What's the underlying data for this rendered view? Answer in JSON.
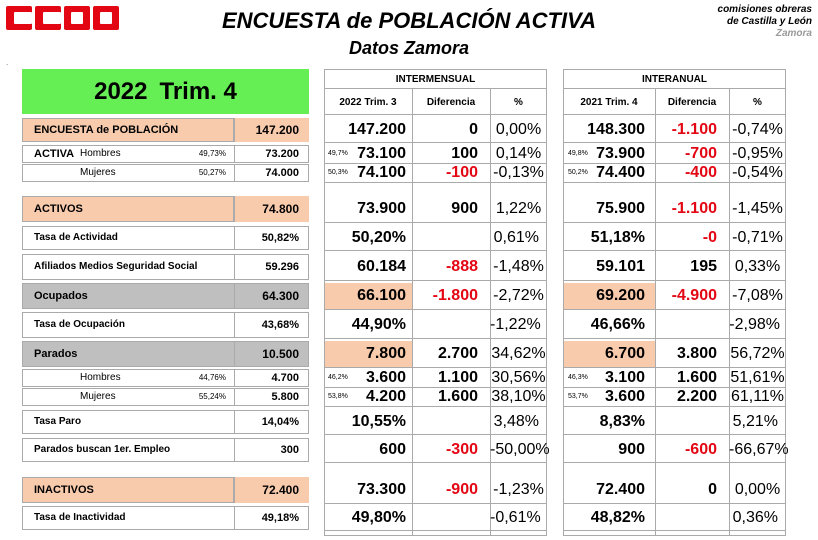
{
  "header": {
    "title": "ENCUESTA de POBLACIÓN ACTIVA",
    "subtitle": "Datos Zamora",
    "org_line1": "comisiones obreras",
    "org_line2": "de Castilla y León",
    "org_line3": "Zamora",
    "logo_text": "CCOO",
    "dot": "."
  },
  "period": {
    "year": "2022",
    "quarter": "Trim. 4"
  },
  "intermensual": {
    "title": "INTERMENSUAL",
    "col1": "2022 Trim. 3",
    "col2": "Diferencia",
    "col3": "%"
  },
  "interanual": {
    "title": "INTERANUAL",
    "col1": "2021 Trim. 4",
    "col2": "Diferencia",
    "col3": "%"
  },
  "rows": [
    {
      "label": "ENCUESTA de POBLACIÓN ACTIVA",
      "pct": "",
      "value": "147.200",
      "im_pct": "",
      "im_val": "147.200",
      "im_diff": "0",
      "im_perc": "0,00%",
      "ia_pct": "",
      "ia_val": "148.300",
      "ia_diff": "-1.100",
      "ia_perc": "-0,74%"
    },
    {
      "label": "Hombres",
      "pct": "49,73%",
      "value": "73.200",
      "im_pct": "49,7%",
      "im_val": "73.100",
      "im_diff": "100",
      "im_perc": "0,14%",
      "ia_pct": "49,8%",
      "ia_val": "73.900",
      "ia_diff": "-700",
      "ia_perc": "-0,95%"
    },
    {
      "label": "Mujeres",
      "pct": "50,27%",
      "value": "74.000",
      "im_pct": "50,3%",
      "im_val": "74.100",
      "im_diff": "-100",
      "im_perc": "-0,13%",
      "ia_pct": "50,2%",
      "ia_val": "74.400",
      "ia_diff": "-400",
      "ia_perc": "-0,54%"
    },
    {
      "label": "ACTIVOS",
      "pct": "",
      "value": "74.800",
      "im_pct": "",
      "im_val": "73.900",
      "im_diff": "900",
      "im_perc": "1,22%",
      "ia_pct": "",
      "ia_val": "75.900",
      "ia_diff": "-1.100",
      "ia_perc": "-1,45%"
    },
    {
      "label": "Tasa de Actividad",
      "pct": "",
      "value": "50,82%",
      "im_pct": "",
      "im_val": "50,20%",
      "im_diff": "",
      "im_perc": "0,61%",
      "ia_pct": "",
      "ia_val": "51,18%",
      "ia_diff": "-0",
      "ia_perc": "-0,71%"
    },
    {
      "label": "Afiliados Medios Seguridad Social",
      "pct": "",
      "value": "59.296",
      "im_pct": "",
      "im_val": "60.184",
      "im_diff": "-888",
      "im_perc": "-1,48%",
      "ia_pct": "",
      "ia_val": "59.101",
      "ia_diff": "195",
      "ia_perc": "0,33%"
    },
    {
      "label": "Ocupados",
      "pct": "",
      "value": "64.300",
      "im_pct": "",
      "im_val": "66.100",
      "im_diff": "-1.800",
      "im_perc": "-2,72%",
      "ia_pct": "",
      "ia_val": "69.200",
      "ia_diff": "-4.900",
      "ia_perc": "-7,08%"
    },
    {
      "label": "Tasa de Ocupación",
      "pct": "",
      "value": "43,68%",
      "im_pct": "",
      "im_val": "44,90%",
      "im_diff": "",
      "im_perc": "-1,22%",
      "ia_pct": "",
      "ia_val": "46,66%",
      "ia_diff": "",
      "ia_perc": "-2,98%"
    },
    {
      "label": "Parados",
      "pct": "",
      "value": "10.500",
      "im_pct": "",
      "im_val": "7.800",
      "im_diff": "2.700",
      "im_perc": "34,62%",
      "ia_pct": "",
      "ia_val": "6.700",
      "ia_diff": "3.800",
      "ia_perc": "56,72%"
    },
    {
      "label": "Hombres",
      "pct": "44,76%",
      "value": "4.700",
      "im_pct": "46,2%",
      "im_val": "3.600",
      "im_diff": "1.100",
      "im_perc": "30,56%",
      "ia_pct": "46,3%",
      "ia_val": "3.100",
      "ia_diff": "1.600",
      "ia_perc": "51,61%"
    },
    {
      "label": "Mujeres",
      "pct": "55,24%",
      "value": "5.800",
      "im_pct": "53,8%",
      "im_val": "4.200",
      "im_diff": "1.600",
      "im_perc": "38,10%",
      "ia_pct": "53,7%",
      "ia_val": "3.600",
      "ia_diff": "2.200",
      "ia_perc": "61,11%"
    },
    {
      "label": "Tasa Paro",
      "pct": "",
      "value": "14,04%",
      "im_pct": "",
      "im_val": "10,55%",
      "im_diff": "",
      "im_perc": "3,48%",
      "ia_pct": "",
      "ia_val": "8,83%",
      "ia_diff": "",
      "ia_perc": "5,21%"
    },
    {
      "label": "Parados buscan 1er. Empleo",
      "pct": "",
      "value": "300",
      "im_pct": "",
      "im_val": "600",
      "im_diff": "-300",
      "im_perc": "-50,00%",
      "ia_pct": "",
      "ia_val": "900",
      "ia_diff": "-600",
      "ia_perc": "-66,67%"
    },
    {
      "label": "INACTIVOS",
      "pct": "",
      "value": "72.400",
      "im_pct": "",
      "im_val": "73.300",
      "im_diff": "-900",
      "im_perc": "-1,23%",
      "ia_pct": "",
      "ia_val": "72.400",
      "ia_diff": "0",
      "ia_perc": "0,00%"
    },
    {
      "label": "Tasa de Inactividad",
      "pct": "",
      "value": "49,18%",
      "im_pct": "",
      "im_val": "49,80%",
      "im_diff": "",
      "im_perc": "-0,61%",
      "ia_pct": "",
      "ia_val": "48,82%",
      "ia_diff": "",
      "ia_perc": "0,36%"
    }
  ]
}
